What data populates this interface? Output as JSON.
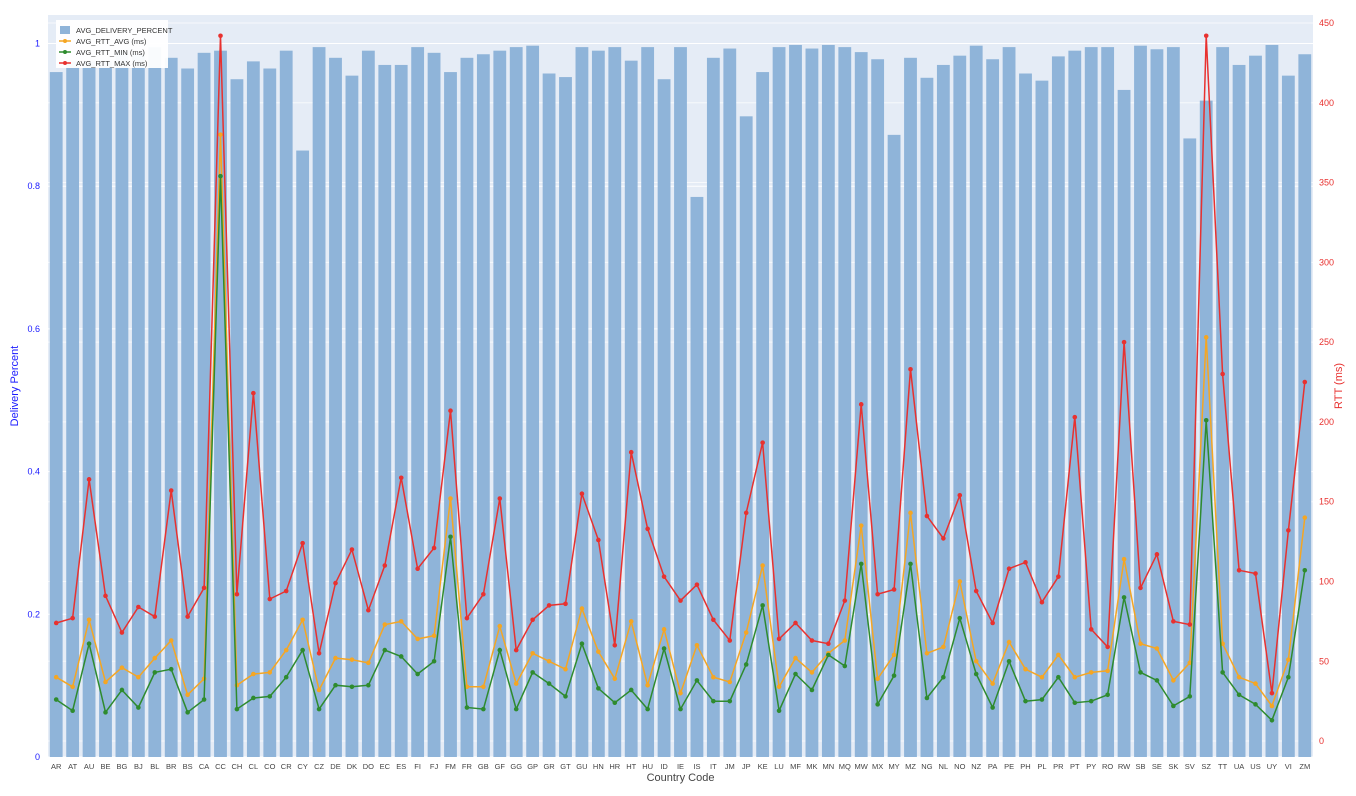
{
  "chart_data": {
    "type": "bar",
    "title": "",
    "xlabel": "Country Code",
    "ylabel_left": "Delivery Percent",
    "ylabel_right": "RTT (ms)",
    "ylim_left": [
      0,
      1.04
    ],
    "ylim_right": [
      -10,
      455
    ],
    "yticks_left": [
      "0",
      "0.2",
      "0.4",
      "0.6",
      "0.8",
      "1"
    ],
    "yticks_left_values": [
      0,
      0.2,
      0.4,
      0.6,
      0.8,
      1
    ],
    "yticks_right": [
      "0",
      "50",
      "100",
      "150",
      "200",
      "250",
      "300",
      "350",
      "400",
      "450"
    ],
    "yticks_right_values": [
      0,
      50,
      100,
      150,
      200,
      250,
      300,
      350,
      400,
      450
    ],
    "grid": true,
    "legend_position": "top-left",
    "categories": [
      "AR",
      "AT",
      "AU",
      "BE",
      "BG",
      "BJ",
      "BL",
      "BR",
      "BS",
      "CA",
      "CC",
      "CH",
      "CL",
      "CO",
      "CR",
      "CY",
      "CZ",
      "DE",
      "DK",
      "DO",
      "EC",
      "ES",
      "FI",
      "FJ",
      "FM",
      "FR",
      "GB",
      "GF",
      "GG",
      "GP",
      "GR",
      "GT",
      "GU",
      "HN",
      "HR",
      "HT",
      "HU",
      "ID",
      "IE",
      "IS",
      "IT",
      "JM",
      "JP",
      "KE",
      "LU",
      "MF",
      "MK",
      "MN",
      "MQ",
      "MW",
      "MX",
      "MY",
      "MZ",
      "NG",
      "NL",
      "NO",
      "NZ",
      "PA",
      "PE",
      "PH",
      "PL",
      "PR",
      "PT",
      "PY",
      "RO",
      "RW",
      "SB",
      "SE",
      "SK",
      "SV",
      "SZ",
      "TT",
      "UA",
      "US",
      "UY",
      "VI",
      "ZM"
    ],
    "series": [
      {
        "name": "AVG_DELIVERY_PERCENT",
        "kind": "bar",
        "axis": "left",
        "color": "#8fb4d9",
        "values": [
          0.96,
          0.975,
          0.975,
          0.975,
          0.99,
          0.985,
          0.995,
          0.98,
          0.965,
          0.987,
          0.99,
          0.95,
          0.975,
          0.965,
          0.99,
          0.85,
          0.995,
          0.98,
          0.955,
          0.99,
          0.97,
          0.97,
          0.995,
          0.987,
          0.96,
          0.98,
          0.985,
          0.99,
          0.995,
          0.997,
          0.958,
          0.953,
          0.995,
          0.99,
          0.995,
          0.976,
          0.995,
          0.95,
          0.995,
          0.785,
          0.98,
          0.993,
          0.898,
          0.96,
          0.995,
          0.998,
          0.993,
          0.998,
          0.995,
          0.988,
          0.978,
          0.872,
          0.98,
          0.952,
          0.97,
          0.983,
          0.997,
          0.978,
          0.995,
          0.958,
          0.948,
          0.982,
          0.99,
          0.995,
          0.995,
          0.935,
          0.997,
          0.992,
          0.995,
          0.867,
          0.92,
          0.995,
          0.97,
          0.983,
          0.998,
          0.955,
          0.985
        ]
      },
      {
        "name": "AVG_RTT_AVG (ms)",
        "kind": "line",
        "axis": "right",
        "color": "#f5a623",
        "values": [
          40,
          34,
          76,
          37,
          46,
          40,
          52,
          63,
          29,
          39,
          380,
          35,
          42,
          43,
          57,
          76,
          32,
          52,
          51,
          49,
          73,
          75,
          64,
          66,
          152,
          34,
          34,
          72,
          36,
          55,
          50,
          45,
          83,
          56,
          39,
          75,
          35,
          70,
          30,
          60,
          40,
          37,
          68,
          110,
          34,
          52,
          43,
          55,
          63,
          135,
          39,
          54,
          143,
          55,
          59,
          100,
          50,
          36,
          62,
          45,
          40,
          54,
          40,
          43,
          44,
          114,
          61,
          58,
          38,
          49,
          253,
          61,
          40,
          36,
          22,
          51,
          140
        ]
      },
      {
        "name": "AVG_RTT_MIN (ms)",
        "kind": "line",
        "axis": "right",
        "color": "#2e8b2e",
        "values": [
          26,
          19,
          61,
          18,
          32,
          21,
          43,
          45,
          18,
          26,
          354,
          20,
          27,
          28,
          40,
          57,
          20,
          35,
          34,
          35,
          57,
          53,
          42,
          50,
          128,
          21,
          20,
          57,
          20,
          43,
          36,
          28,
          61,
          33,
          24,
          32,
          20,
          58,
          20,
          38,
          25,
          25,
          48,
          85,
          19,
          42,
          32,
          54,
          47,
          111,
          23,
          41,
          111,
          27,
          40,
          77,
          42,
          21,
          50,
          25,
          26,
          40,
          24,
          25,
          29,
          90,
          43,
          38,
          22,
          28,
          201,
          43,
          29,
          23,
          13,
          40,
          107
        ]
      },
      {
        "name": "AVG_RTT_MAX (ms)",
        "kind": "line",
        "axis": "right",
        "color": "#e8312f",
        "values": [
          74,
          77,
          164,
          91,
          68,
          84,
          78,
          157,
          78,
          96,
          442,
          92,
          218,
          89,
          94,
          124,
          55,
          99,
          120,
          82,
          110,
          165,
          108,
          121,
          207,
          77,
          92,
          152,
          57,
          76,
          85,
          86,
          155,
          126,
          60,
          181,
          133,
          103,
          88,
          98,
          76,
          63,
          143,
          187,
          64,
          74,
          63,
          61,
          88,
          211,
          92,
          95,
          233,
          141,
          127,
          154,
          94,
          74,
          108,
          112,
          87,
          103,
          203,
          70,
          59,
          250,
          96,
          117,
          75,
          73,
          442,
          230,
          107,
          105,
          30,
          132,
          225
        ]
      }
    ]
  }
}
